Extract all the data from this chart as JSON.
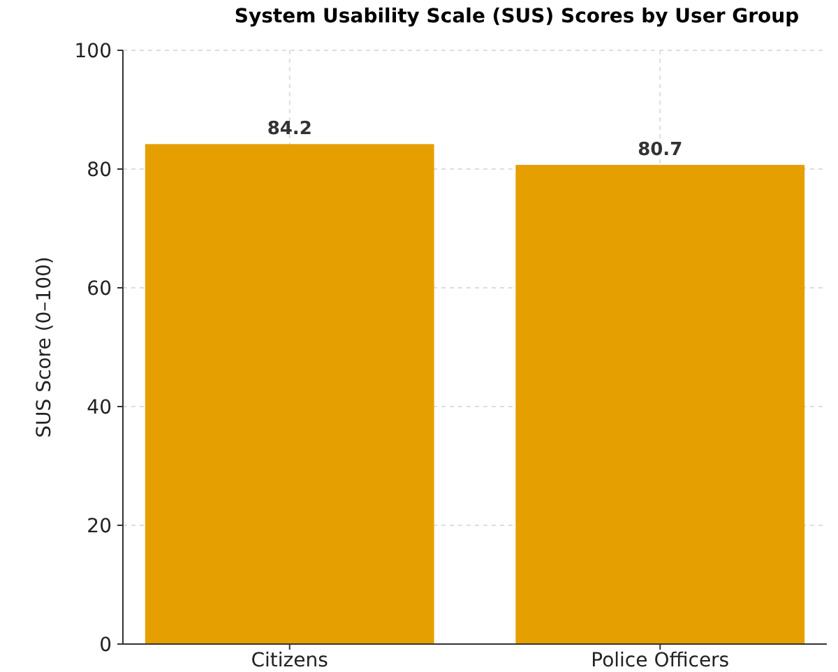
{
  "chart_data": {
    "type": "bar",
    "title": "System Usability Scale (SUS) Scores by User Group",
    "ylabel": "SUS Score (0–100)",
    "categories": [
      "Citizens",
      "Police Officers"
    ],
    "values": [
      84.2,
      80.7
    ],
    "color": "#e69f00",
    "ylim": [
      0,
      100
    ],
    "yticks": [
      0,
      20,
      40,
      60,
      80,
      100
    ],
    "grid": true,
    "data_labels": true
  }
}
